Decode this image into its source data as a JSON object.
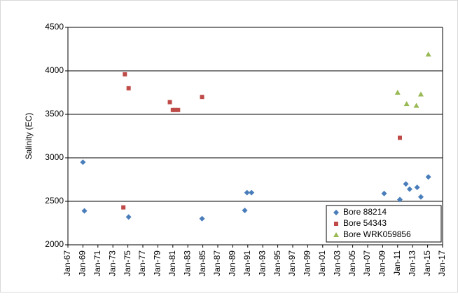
{
  "chart_data": {
    "type": "scatter",
    "y_label": "Salinity (EC)",
    "xlim": [
      1967,
      2017
    ],
    "ylim": [
      2000,
      4500
    ],
    "xticks": [
      {
        "value": 1967,
        "label": "Jan-67"
      },
      {
        "value": 1969,
        "label": "Jan-69"
      },
      {
        "value": 1971,
        "label": "Jan-71"
      },
      {
        "value": 1973,
        "label": "Jan-73"
      },
      {
        "value": 1975,
        "label": "Jan-75"
      },
      {
        "value": 1977,
        "label": "Jan-77"
      },
      {
        "value": 1979,
        "label": "Jan-79"
      },
      {
        "value": 1981,
        "label": "Jan-81"
      },
      {
        "value": 1983,
        "label": "Jan-83"
      },
      {
        "value": 1985,
        "label": "Jan-85"
      },
      {
        "value": 1987,
        "label": "Jan-87"
      },
      {
        "value": 1989,
        "label": "Jan-89"
      },
      {
        "value": 1991,
        "label": "Jan-91"
      },
      {
        "value": 1993,
        "label": "Jan-93"
      },
      {
        "value": 1995,
        "label": "Jan-95"
      },
      {
        "value": 1997,
        "label": "Jan-97"
      },
      {
        "value": 1999,
        "label": "Jan-99"
      },
      {
        "value": 2001,
        "label": "Jan-01"
      },
      {
        "value": 2003,
        "label": "Jan-03"
      },
      {
        "value": 2005,
        "label": "Jan-05"
      },
      {
        "value": 2007,
        "label": "Jan-07"
      },
      {
        "value": 2009,
        "label": "Jan-09"
      },
      {
        "value": 2011,
        "label": "Jan-11"
      },
      {
        "value": 2013,
        "label": "Jan-13"
      },
      {
        "value": 2015,
        "label": "Jan-15"
      },
      {
        "value": 2017,
        "label": "Jan-17"
      }
    ],
    "yticks": [
      2000,
      2500,
      3000,
      3500,
      4000,
      4500
    ],
    "grid": true,
    "legend": "bottom-right",
    "series": [
      {
        "name": "Bore 88214",
        "color": "#4a7ebb",
        "marker": "diamond",
        "x": [
          1969.0,
          1969.2,
          1975.1,
          1984.9,
          1990.6,
          1990.9,
          1991.5,
          2009.2,
          2011.3,
          2012.1,
          2012.6,
          2013.6,
          2014.1,
          2015.1
        ],
        "values": [
          2950,
          2390,
          2320,
          2300,
          2395,
          2600,
          2600,
          2590,
          2520,
          2700,
          2640,
          2660,
          2550,
          2780
        ]
      },
      {
        "name": "Bore 54343",
        "color": "#be4b48",
        "marker": "square",
        "x": [
          1974.4,
          1974.6,
          1975.1,
          1980.6,
          1981.0,
          1981.3,
          1981.7,
          1984.9,
          2011.3
        ],
        "values": [
          2430,
          3960,
          3800,
          3640,
          3550,
          3550,
          3550,
          3700,
          3230
        ]
      },
      {
        "name": "Bore WRK059856",
        "color": "#98b954",
        "marker": "triangle",
        "x": [
          2011.0,
          2012.2,
          2013.5,
          2014.1,
          2015.1
        ],
        "values": [
          3750,
          3620,
          3600,
          3730,
          4190
        ]
      }
    ]
  }
}
